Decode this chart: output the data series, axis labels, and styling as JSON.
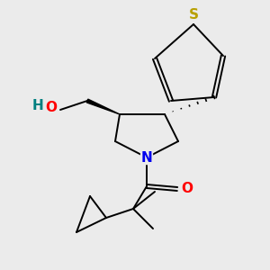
{
  "background_color": "#ebebeb",
  "atom_colors": {
    "S": "#b8a000",
    "N": "#0000ee",
    "O": "#ff0000",
    "HO_H": "#008080",
    "HO_O": "#ff0000",
    "C": "#000000"
  },
  "figure_size": [
    3.0,
    3.0
  ],
  "dpi": 100
}
